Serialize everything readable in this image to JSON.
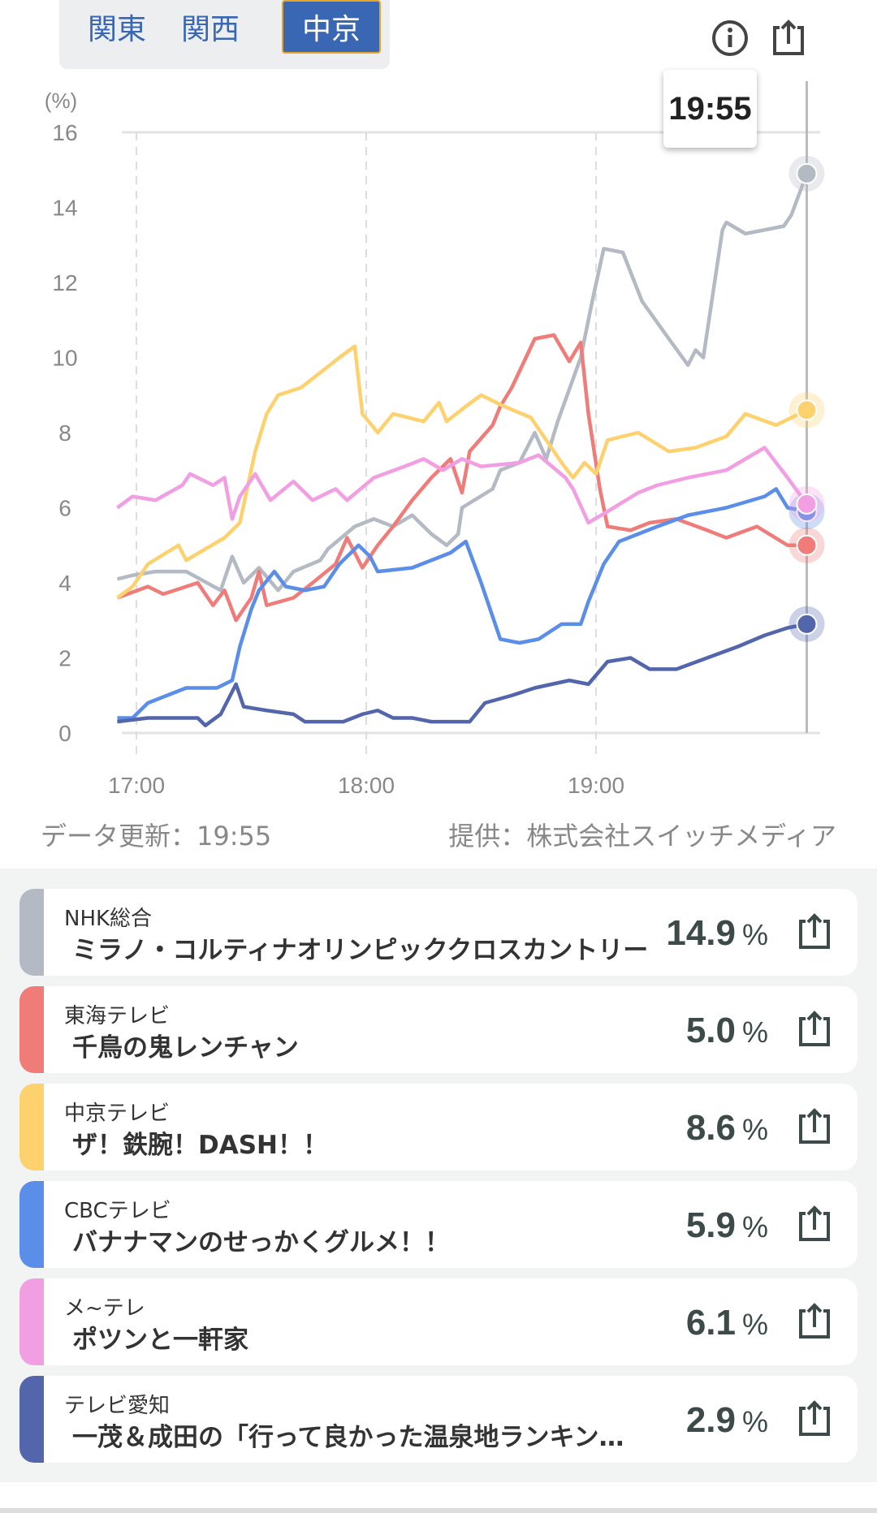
{
  "tabs": [
    {
      "label": "関東",
      "active": false
    },
    {
      "label": "関西",
      "active": false
    },
    {
      "label": "中京",
      "active": true
    }
  ],
  "tooltip": "19:55",
  "footer": {
    "updated": "データ更新：19:55",
    "provider": "提供：株式会社スイッチメディア"
  },
  "chart_data": {
    "type": "line",
    "ylabel": "(%)",
    "ylim": [
      0,
      16
    ],
    "yticks": [
      "0",
      "2",
      "4",
      "6",
      "8",
      "10",
      "12",
      "14",
      "16"
    ],
    "xlim_minutes_from_1700": [
      -5,
      175
    ],
    "xticks": [
      {
        "label": "17:00",
        "minute": 0
      },
      {
        "label": "18:00",
        "minute": 60
      },
      {
        "label": "19:00",
        "minute": 120
      }
    ],
    "cursor_minute": 175,
    "series": [
      {
        "name": "NHK総合",
        "color": "#b4bac3",
        "points": [
          [
            -5,
            4.1
          ],
          [
            -1,
            4.2
          ],
          [
            5,
            4.3
          ],
          [
            13,
            4.3
          ],
          [
            22,
            3.8
          ],
          [
            25,
            4.7
          ],
          [
            28,
            4.0
          ],
          [
            32,
            4.4
          ],
          [
            37,
            3.8
          ],
          [
            41,
            4.3
          ],
          [
            48,
            4.6
          ],
          [
            50,
            4.9
          ],
          [
            57,
            5.5
          ],
          [
            62,
            5.7
          ],
          [
            67,
            5.5
          ],
          [
            72,
            5.8
          ],
          [
            77,
            5.3
          ],
          [
            81,
            5.0
          ],
          [
            84,
            5.3
          ],
          [
            85,
            6.0
          ],
          [
            93,
            6.5
          ],
          [
            95,
            7.0
          ],
          [
            100,
            7.2
          ],
          [
            104,
            8.0
          ],
          [
            107,
            7.3
          ],
          [
            110,
            8.3
          ],
          [
            116,
            10.0
          ],
          [
            119,
            11.5
          ],
          [
            122,
            12.9
          ],
          [
            127,
            12.8
          ],
          [
            132,
            11.5
          ],
          [
            139,
            10.5
          ],
          [
            144,
            9.8
          ],
          [
            146,
            10.2
          ],
          [
            148,
            10.0
          ],
          [
            153,
            13.4
          ],
          [
            154,
            13.6
          ],
          [
            159,
            13.3
          ],
          [
            164,
            13.4
          ],
          [
            169,
            13.5
          ],
          [
            171,
            13.8
          ],
          [
            175,
            14.9
          ]
        ]
      },
      {
        "name": "東海テレビ",
        "color": "#f07c7a",
        "points": [
          [
            -5,
            3.6
          ],
          [
            3,
            3.9
          ],
          [
            7,
            3.7
          ],
          [
            16,
            4.0
          ],
          [
            20,
            3.4
          ],
          [
            23,
            3.8
          ],
          [
            26,
            3.0
          ],
          [
            30,
            3.6
          ],
          [
            32,
            4.3
          ],
          [
            34,
            3.4
          ],
          [
            41,
            3.6
          ],
          [
            46,
            4.0
          ],
          [
            52,
            4.5
          ],
          [
            55,
            5.2
          ],
          [
            59,
            4.4
          ],
          [
            63,
            5.0
          ],
          [
            67,
            5.5
          ],
          [
            72,
            6.2
          ],
          [
            77,
            6.8
          ],
          [
            82,
            7.3
          ],
          [
            85,
            6.4
          ],
          [
            87,
            7.5
          ],
          [
            93,
            8.2
          ],
          [
            95,
            8.7
          ],
          [
            98,
            9.2
          ],
          [
            104,
            10.5
          ],
          [
            109,
            10.6
          ],
          [
            113,
            9.9
          ],
          [
            116,
            10.4
          ],
          [
            118,
            8.5
          ],
          [
            121,
            6.5
          ],
          [
            123,
            5.5
          ],
          [
            129,
            5.4
          ],
          [
            134,
            5.6
          ],
          [
            141,
            5.7
          ],
          [
            149,
            5.4
          ],
          [
            154,
            5.2
          ],
          [
            162,
            5.5
          ],
          [
            170,
            5.0
          ],
          [
            175,
            5.0
          ]
        ]
      },
      {
        "name": "中京テレビ",
        "color": "#fdd26e",
        "points": [
          [
            -5,
            3.6
          ],
          [
            -1,
            3.9
          ],
          [
            3,
            4.5
          ],
          [
            11,
            5.0
          ],
          [
            13,
            4.6
          ],
          [
            23,
            5.2
          ],
          [
            27,
            5.6
          ],
          [
            31,
            7.5
          ],
          [
            34,
            8.5
          ],
          [
            37,
            9.0
          ],
          [
            43,
            9.2
          ],
          [
            48,
            9.6
          ],
          [
            53,
            10.0
          ],
          [
            57,
            10.3
          ],
          [
            59,
            8.5
          ],
          [
            63,
            8.0
          ],
          [
            67,
            8.5
          ],
          [
            75,
            8.3
          ],
          [
            79,
            8.8
          ],
          [
            81,
            8.3
          ],
          [
            86,
            8.7
          ],
          [
            90,
            9.0
          ],
          [
            96,
            8.7
          ],
          [
            103,
            8.4
          ],
          [
            107,
            7.8
          ],
          [
            111,
            7.2
          ],
          [
            114,
            6.8
          ],
          [
            117,
            7.2
          ],
          [
            120,
            6.9
          ],
          [
            123,
            7.8
          ],
          [
            131,
            8.0
          ],
          [
            139,
            7.5
          ],
          [
            146,
            7.6
          ],
          [
            154,
            7.9
          ],
          [
            159,
            8.5
          ],
          [
            167,
            8.2
          ],
          [
            175,
            8.6
          ]
        ]
      },
      {
        "name": "CBCテレビ",
        "color": "#5b8ee8",
        "points": [
          [
            -5,
            0.4
          ],
          [
            -1,
            0.4
          ],
          [
            3,
            0.8
          ],
          [
            8,
            1.0
          ],
          [
            13,
            1.2
          ],
          [
            21,
            1.2
          ],
          [
            25,
            1.4
          ],
          [
            27,
            2.3
          ],
          [
            30,
            3.3
          ],
          [
            32,
            3.8
          ],
          [
            36,
            4.3
          ],
          [
            39,
            3.9
          ],
          [
            44,
            3.8
          ],
          [
            49,
            3.9
          ],
          [
            53,
            4.5
          ],
          [
            58,
            5.0
          ],
          [
            61,
            4.7
          ],
          [
            63,
            4.3
          ],
          [
            72,
            4.4
          ],
          [
            77,
            4.6
          ],
          [
            82,
            4.8
          ],
          [
            86,
            5.1
          ],
          [
            90,
            4.0
          ],
          [
            95,
            2.5
          ],
          [
            100,
            2.4
          ],
          [
            105,
            2.5
          ],
          [
            111,
            2.9
          ],
          [
            116,
            2.9
          ],
          [
            118,
            3.5
          ],
          [
            122,
            4.5
          ],
          [
            126,
            5.1
          ],
          [
            131,
            5.3
          ],
          [
            136,
            5.5
          ],
          [
            144,
            5.8
          ],
          [
            154,
            6.0
          ],
          [
            164,
            6.3
          ],
          [
            167,
            6.5
          ],
          [
            170,
            6.0
          ],
          [
            175,
            5.9
          ]
        ]
      },
      {
        "name": "メ~テレ",
        "color": "#f29ee3",
        "points": [
          [
            -5,
            6.0
          ],
          [
            -1,
            6.3
          ],
          [
            5,
            6.2
          ],
          [
            12,
            6.6
          ],
          [
            14,
            6.9
          ],
          [
            20,
            6.6
          ],
          [
            23,
            6.8
          ],
          [
            25,
            5.7
          ],
          [
            27,
            6.3
          ],
          [
            31,
            6.9
          ],
          [
            35,
            6.2
          ],
          [
            41,
            6.7
          ],
          [
            46,
            6.2
          ],
          [
            52,
            6.5
          ],
          [
            55,
            6.2
          ],
          [
            62,
            6.8
          ],
          [
            70,
            7.1
          ],
          [
            75,
            7.3
          ],
          [
            80,
            7.0
          ],
          [
            85,
            7.3
          ],
          [
            90,
            7.1
          ],
          [
            100,
            7.2
          ],
          [
            105,
            7.4
          ],
          [
            112,
            6.8
          ],
          [
            114,
            6.5
          ],
          [
            118,
            5.6
          ],
          [
            123,
            5.9
          ],
          [
            131,
            6.4
          ],
          [
            136,
            6.6
          ],
          [
            144,
            6.8
          ],
          [
            154,
            7.0
          ],
          [
            164,
            7.6
          ],
          [
            170,
            6.8
          ],
          [
            175,
            6.1
          ]
        ]
      },
      {
        "name": "テレビ愛知",
        "color": "#5466ab",
        "points": [
          [
            -5,
            0.3
          ],
          [
            3,
            0.4
          ],
          [
            16,
            0.4
          ],
          [
            18,
            0.2
          ],
          [
            22,
            0.5
          ],
          [
            26,
            1.3
          ],
          [
            28,
            0.7
          ],
          [
            34,
            0.6
          ],
          [
            41,
            0.5
          ],
          [
            44,
            0.3
          ],
          [
            54,
            0.3
          ],
          [
            59,
            0.5
          ],
          [
            63,
            0.6
          ],
          [
            67,
            0.4
          ],
          [
            72,
            0.4
          ],
          [
            77,
            0.3
          ],
          [
            87,
            0.3
          ],
          [
            91,
            0.8
          ],
          [
            98,
            1.0
          ],
          [
            104,
            1.2
          ],
          [
            113,
            1.4
          ],
          [
            118,
            1.3
          ],
          [
            123,
            1.9
          ],
          [
            129,
            2.0
          ],
          [
            134,
            1.7
          ],
          [
            141,
            1.7
          ],
          [
            149,
            2.0
          ],
          [
            157,
            2.3
          ],
          [
            164,
            2.6
          ],
          [
            170,
            2.8
          ],
          [
            175,
            2.9
          ]
        ]
      }
    ]
  },
  "list": [
    {
      "channel": "NHK総合",
      "title": "ミラノ・コルティナオリンピッククロスカントリー",
      "value": "14.9",
      "unit": "%",
      "color": "#b4bac3"
    },
    {
      "channel": "東海テレビ",
      "title": "千鳥の鬼レンチャン",
      "value": "5.0",
      "unit": "%",
      "color": "#f07c7a"
    },
    {
      "channel": "中京テレビ",
      "title": "ザ！鉄腕！DASH！！",
      "value": "8.6",
      "unit": "%",
      "color": "#fdd26e"
    },
    {
      "channel": "CBCテレビ",
      "title": "バナナマンのせっかくグルメ！！",
      "value": "5.9",
      "unit": "%",
      "color": "#5b8ee8"
    },
    {
      "channel": "メ~テレ",
      "title": "ポツンと一軒家",
      "value": "6.1",
      "unit": "%",
      "color": "#f29ee3"
    },
    {
      "channel": "テレビ愛知",
      "title": "一茂＆成田の「行って良かった温泉地ランキング」",
      "value": "2.9",
      "unit": "%",
      "color": "#5466ab"
    }
  ]
}
